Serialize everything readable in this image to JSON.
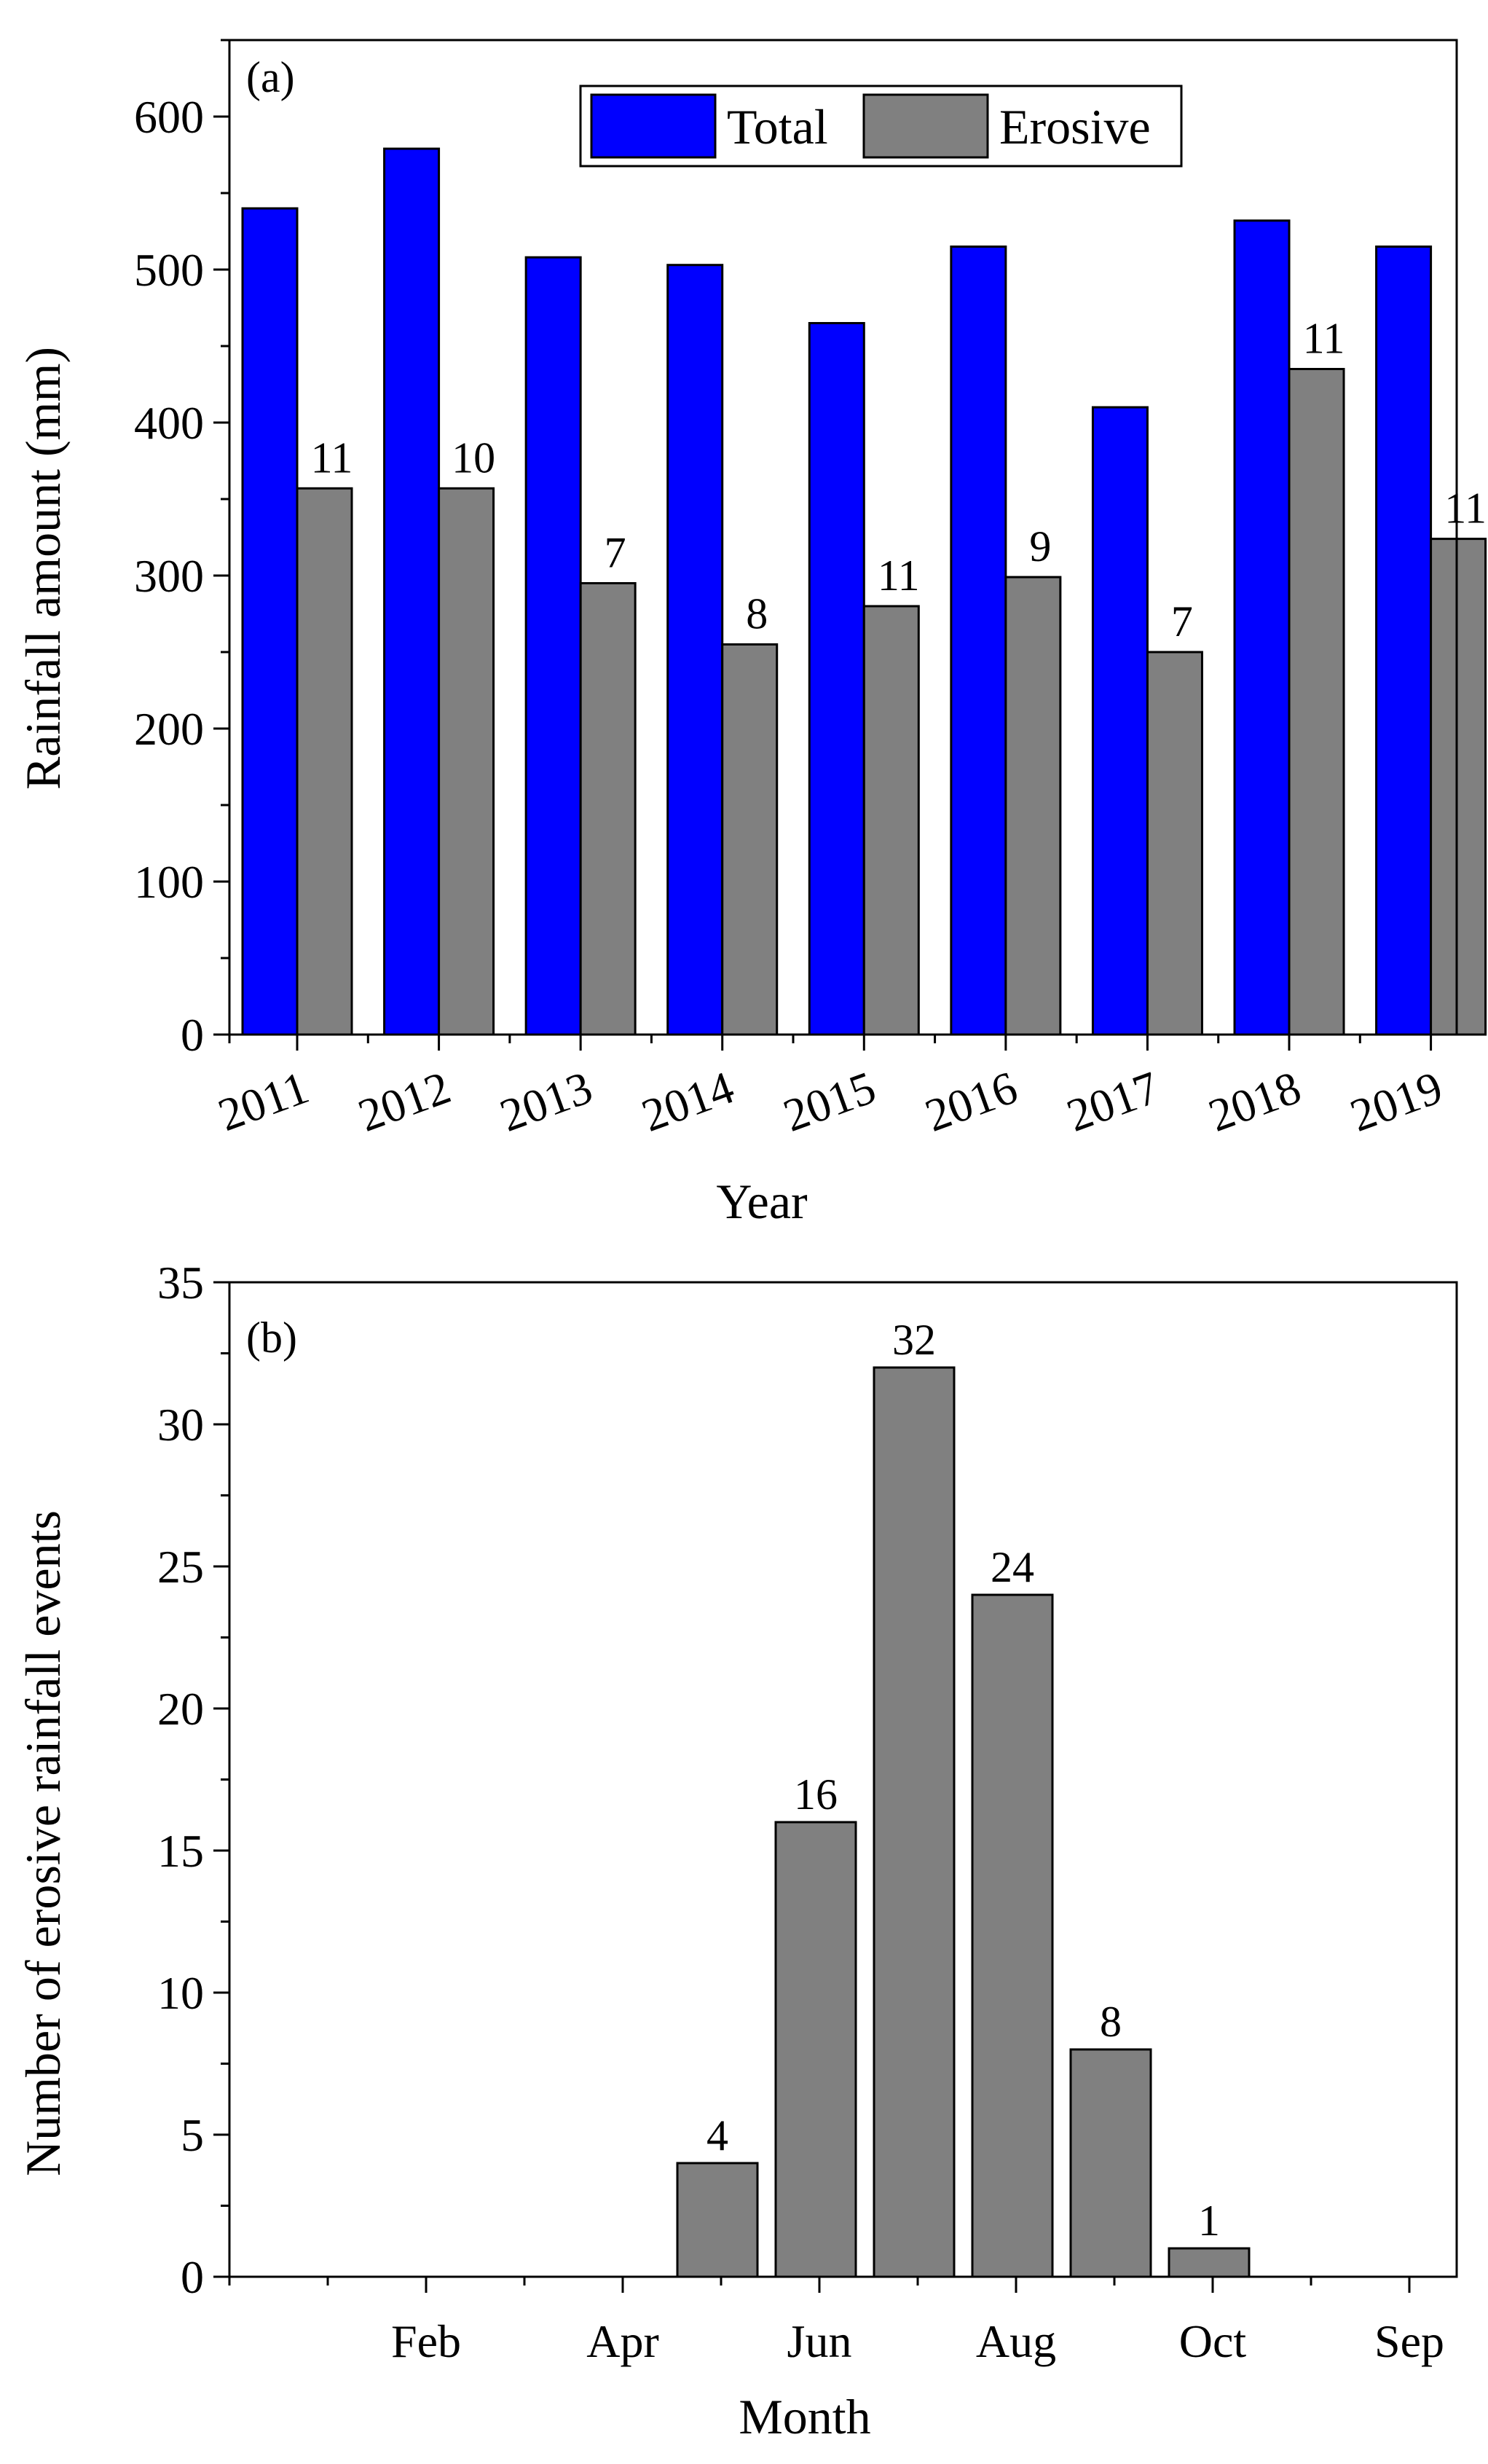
{
  "colors": {
    "total": "#0000ff",
    "erosive": "#808080",
    "axis": "#000000"
  },
  "chart_data": [
    {
      "type": "bar",
      "panel_label": "(a)",
      "categories": [
        "2011",
        "2012",
        "2013",
        "2014",
        "2015",
        "2016",
        "2017",
        "2018",
        "2019"
      ],
      "series": [
        {
          "name": "Total",
          "values": [
            540,
            579,
            508,
            503,
            465,
            515,
            410,
            532,
            515
          ]
        },
        {
          "name": "Erosive",
          "values": [
            357,
            357,
            295,
            255,
            280,
            299,
            250,
            435,
            324
          ]
        }
      ],
      "annotations": [
        "11",
        "10",
        "7",
        "8",
        "11",
        "9",
        "7",
        "11",
        "11"
      ],
      "xlabel": "Year",
      "ylabel": "Rainfall amount (mm)",
      "ylim": [
        0,
        650
      ],
      "yticks": [
        0,
        100,
        200,
        300,
        400,
        500,
        600
      ],
      "legend_position": "top-right"
    },
    {
      "type": "bar",
      "panel_label": "(b)",
      "xticks": [
        "Feb",
        "Apr",
        "Jun",
        "Aug",
        "Oct",
        "Sep"
      ],
      "x": [
        5,
        6,
        7,
        8,
        9,
        10
      ],
      "values": [
        4,
        16,
        32,
        24,
        8,
        1
      ],
      "annotations": [
        "4",
        "16",
        "32",
        "24",
        "8",
        "1"
      ],
      "xlabel": "Month",
      "ylabel": "Number of erosive rainfall events",
      "ylim": [
        0,
        35
      ],
      "yticks": [
        0,
        5,
        10,
        15,
        20,
        25,
        30,
        35
      ]
    }
  ]
}
